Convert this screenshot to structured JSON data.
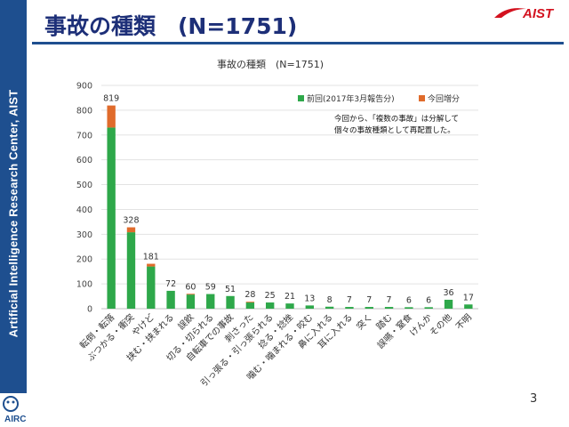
{
  "slide": {
    "title": "事故の種類　(N=1751)",
    "sidebar_text": "Artificial Intelligence Research Center, AIST",
    "logo_text": "AIST",
    "airc_text": "AIRC",
    "page_number": "3"
  },
  "colors": {
    "previous": "#2ea84a",
    "increase": "#e06b2b",
    "sidebar": "#1e4f8f",
    "title": "#1d2f78",
    "logo_red": "#d3121f"
  },
  "chart_data": {
    "type": "bar",
    "stacked": true,
    "title": "事故の種類　(N=1751)",
    "categories": [
      "転倒・転落",
      "ぶつかる・衝突",
      "やけど",
      "挟む・挟まれる",
      "誤飲",
      "切る・切られる",
      "自転車での事故",
      "刺さった",
      "引っ張る・引っ張られる",
      "捻る・捻挫",
      "噛む・噛まれる・咬む",
      "鼻に入れる",
      "耳に入れる",
      "突く",
      "踏む",
      "誤嚥・窒食",
      "けんか",
      "その他",
      "不明"
    ],
    "series": [
      {
        "name": "前回(2017年3月報告分)",
        "color": "#2ea84a",
        "values": [
          730,
          308,
          170,
          72,
          57,
          59,
          51,
          25,
          25,
          21,
          13,
          8,
          7,
          7,
          7,
          6,
          6,
          36,
          17
        ]
      },
      {
        "name": "今回増分",
        "color": "#e06b2b",
        "values": [
          89,
          20,
          11,
          0,
          3,
          0,
          0,
          3,
          0,
          0,
          0,
          0,
          0,
          0,
          0,
          0,
          0,
          0,
          0
        ]
      }
    ],
    "totals": [
      819,
      328,
      181,
      72,
      60,
      59,
      51,
      28,
      25,
      21,
      13,
      8,
      7,
      7,
      7,
      6,
      6,
      36,
      17
    ],
    "ylim": [
      0,
      900
    ],
    "yticks": [
      0,
      100,
      200,
      300,
      400,
      500,
      600,
      700,
      800,
      900
    ],
    "grid": true,
    "legend_position": "top-right",
    "annotation": [
      "今回から、「複数の事故」は分解して",
      "個々の事故種類として再配置した。"
    ]
  }
}
